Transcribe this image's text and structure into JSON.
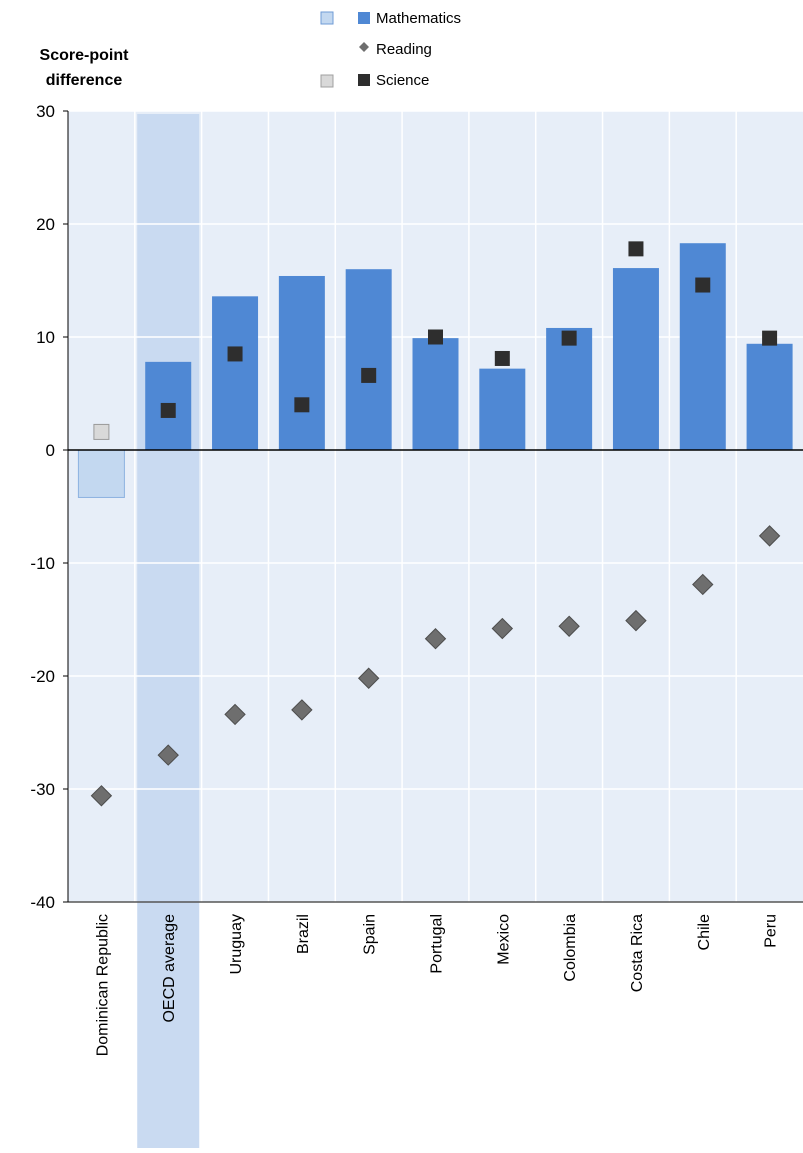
{
  "chart_data": {
    "type": "bar",
    "ylabel": "Score-point difference",
    "ylim": [
      -40,
      30
    ],
    "yticks": [
      -40,
      -30,
      -20,
      -10,
      0,
      10,
      20,
      30
    ],
    "categories": [
      "Dominican Republic",
      "OECD average",
      "Uruguay",
      "Brazil",
      "Spain",
      "Portugal",
      "Mexico",
      "Colombia",
      "Costa Rica",
      "Chile",
      "Peru"
    ],
    "highlighted_category": "OECD average",
    "series": [
      {
        "name": "Mathematics",
        "kind": "bar",
        "values": [
          -4.2,
          7.8,
          13.6,
          15.4,
          16.0,
          9.9,
          7.2,
          10.8,
          16.1,
          18.3,
          9.4
        ],
        "color": "#4f88d4",
        "light_color": "#c3d8f0",
        "light_categories": [
          "Dominican Republic"
        ]
      },
      {
        "name": "Reading",
        "kind": "diamond",
        "values": [
          -30.6,
          -27.0,
          -23.4,
          -23.0,
          -20.2,
          -16.7,
          -15.8,
          -15.6,
          -15.1,
          -11.9,
          -7.6
        ],
        "color": "#6e6e6e"
      },
      {
        "name": "Science",
        "kind": "square",
        "values": [
          1.6,
          3.5,
          8.5,
          4.0,
          6.6,
          10.0,
          8.1,
          9.9,
          17.8,
          14.6,
          9.9
        ],
        "color": "#2e2e2e",
        "light_color": "#d9d9d9",
        "light_categories": [
          "Dominican Republic"
        ]
      }
    ],
    "colors": {
      "plot_background": "#e7eef8",
      "gridline": "#ffffff",
      "highlight_band": "#c9daf1",
      "axis": "#000000"
    },
    "grid": true,
    "legend_position": "top-center"
  }
}
